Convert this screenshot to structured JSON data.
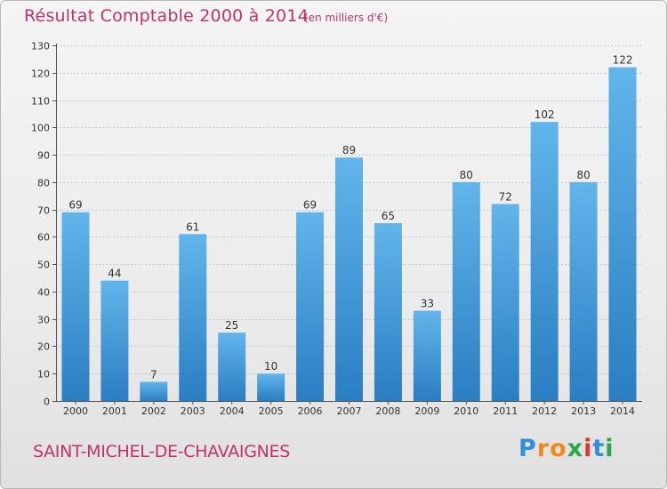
{
  "chart_data": {
    "type": "bar",
    "title": "Résultat Comptable 2000 à 2014",
    "subtitle": "(en milliers d'€)",
    "categories": [
      "2000",
      "2001",
      "2002",
      "2003",
      "2004",
      "2005",
      "2006",
      "2007",
      "2008",
      "2009",
      "2010",
      "2011",
      "2012",
      "2013",
      "2014"
    ],
    "values": [
      69,
      44,
      7,
      61,
      25,
      10,
      69,
      89,
      65,
      33,
      80,
      72,
      102,
      80,
      122
    ],
    "ylim": [
      0,
      130
    ],
    "yticks": [
      0,
      10,
      20,
      30,
      40,
      50,
      60,
      70,
      80,
      90,
      100,
      110,
      120,
      130
    ],
    "xlabel": "",
    "ylabel": "",
    "grid": true,
    "colors": {
      "bar_light": "#62b5ea",
      "bar_dark": "#2a7ec2",
      "title": "#c0326a"
    }
  },
  "footer": {
    "commune": "SAINT-MICHEL-DE-CHAVAIGNES"
  },
  "logo": {
    "letters": [
      "P",
      "r",
      "o",
      "x",
      "i",
      "t",
      "i"
    ],
    "colors": [
      "#2f8fd8",
      "#f08a1c",
      "#f08a1c",
      "#2aa84a",
      "#e0352b",
      "#2f8fd8",
      "#2aa84a"
    ]
  }
}
